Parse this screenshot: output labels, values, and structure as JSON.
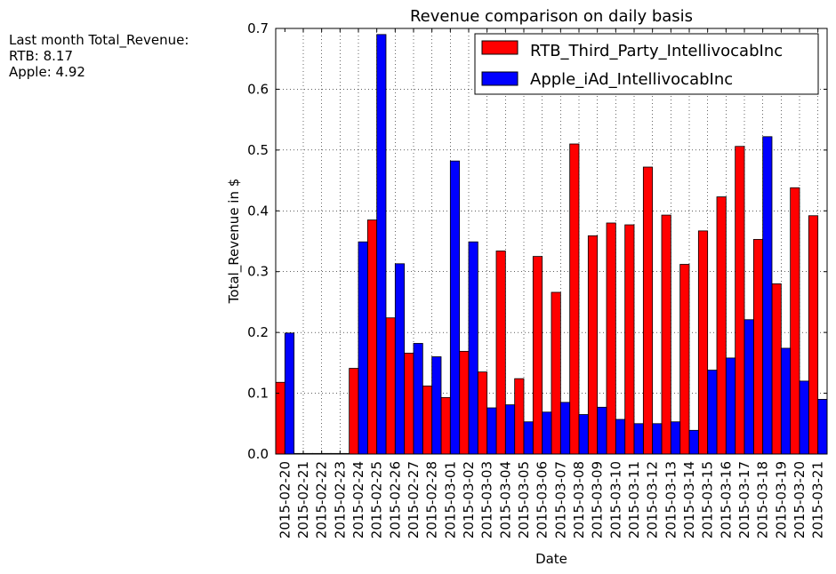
{
  "annotation": {
    "line1": "Last month Total_Revenue:",
    "line2": "RTB: 8.17",
    "line3": "Apple: 4.92"
  },
  "chart_data": {
    "type": "bar",
    "title": "Revenue comparison on daily basis",
    "xlabel": "Date",
    "ylabel": "Total_Revenue in $",
    "ylim": [
      0,
      0.7
    ],
    "yticks": [
      "0.0",
      "0.1",
      "0.2",
      "0.3",
      "0.4",
      "0.5",
      "0.6",
      "0.7"
    ],
    "grid": true,
    "legend_position": "top-right",
    "categories": [
      "2015-02-20",
      "2015-02-21",
      "2015-02-22",
      "2015-02-23",
      "2015-02-24",
      "2015-02-25",
      "2015-02-26",
      "2015-02-27",
      "2015-02-28",
      "2015-03-01",
      "2015-03-02",
      "2015-03-03",
      "2015-03-04",
      "2015-03-05",
      "2015-03-06",
      "2015-03-07",
      "2015-03-08",
      "2015-03-09",
      "2015-03-10",
      "2015-03-11",
      "2015-03-12",
      "2015-03-13",
      "2015-03-14",
      "2015-03-15",
      "2015-03-16",
      "2015-03-17",
      "2015-03-18",
      "2015-03-19",
      "2015-03-20",
      "2015-03-21"
    ],
    "series": [
      {
        "name": "RTB_Third_Party_IntellivocabInc",
        "color": "#ff0000",
        "values": [
          0.118,
          0.001,
          0.001,
          0.001,
          0.141,
          0.385,
          0.224,
          0.166,
          0.112,
          0.093,
          0.169,
          0.135,
          0.334,
          0.124,
          0.325,
          0.266,
          0.51,
          0.359,
          0.38,
          0.377,
          0.472,
          0.393,
          0.312,
          0.367,
          0.423,
          0.506,
          0.353,
          0.28,
          0.438,
          0.392
        ]
      },
      {
        "name": "Apple_iAd_IntellivocabInc",
        "color": "#0000ff",
        "values": [
          0.199,
          0.001,
          0.001,
          0.001,
          0.349,
          0.69,
          0.313,
          0.182,
          0.16,
          0.482,
          0.349,
          0.076,
          0.081,
          0.053,
          0.069,
          0.085,
          0.065,
          0.077,
          0.057,
          0.05,
          0.05,
          0.053,
          0.039,
          0.138,
          0.158,
          0.221,
          0.522,
          0.174,
          0.12,
          0.09
        ]
      }
    ]
  }
}
